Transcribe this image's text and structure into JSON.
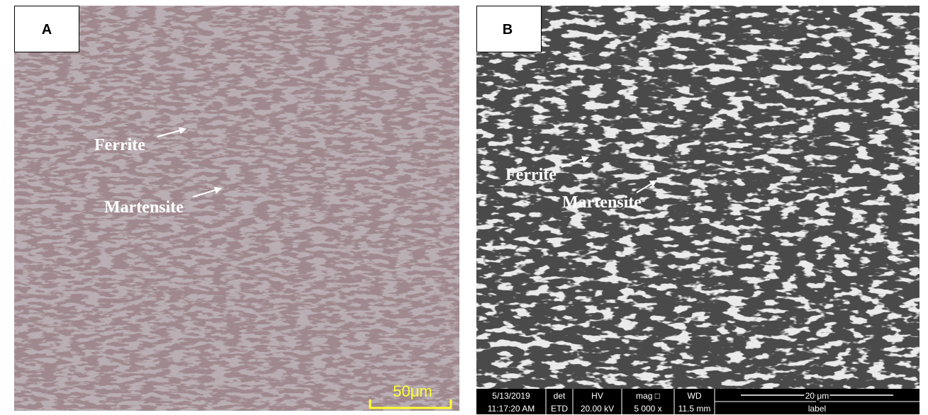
{
  "panels": [
    {
      "label": "A",
      "annotations": [
        "Ferrite",
        "Martensite"
      ],
      "scale_bar": "50μm"
    },
    {
      "label": "B",
      "annotations": [
        "Ferrite",
        "Martensite"
      ],
      "info_bar": {
        "rows": [
          [
            "5/13/2019",
            "det",
            "HV",
            "mag □",
            "WD",
            "20 μm"
          ],
          [
            "11:17:20 AM",
            "ETD",
            "20.00 kV",
            "5 000 x",
            "11.5 mm",
            "label"
          ]
        ]
      }
    }
  ]
}
